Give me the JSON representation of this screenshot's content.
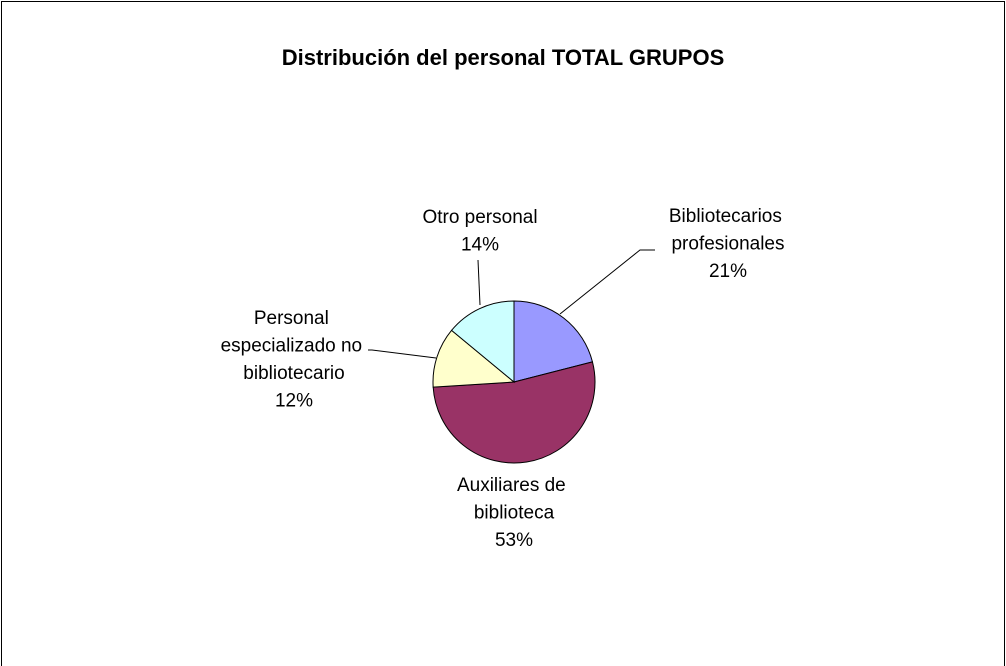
{
  "chart_data": {
    "type": "pie",
    "title": "Distribución del personal TOTAL GRUPOS",
    "categories": [
      "Bibliotecarios profesionales",
      "Auxiliares de biblioteca",
      "Personal especializado no bibliotecario",
      "Otro personal"
    ],
    "values": [
      21,
      53,
      12,
      14
    ],
    "value_labels": [
      "21%",
      "53%",
      "12%",
      "14%"
    ],
    "colors": [
      "#9999ff",
      "#993366",
      "#ffffcc",
      "#ccffff"
    ]
  }
}
